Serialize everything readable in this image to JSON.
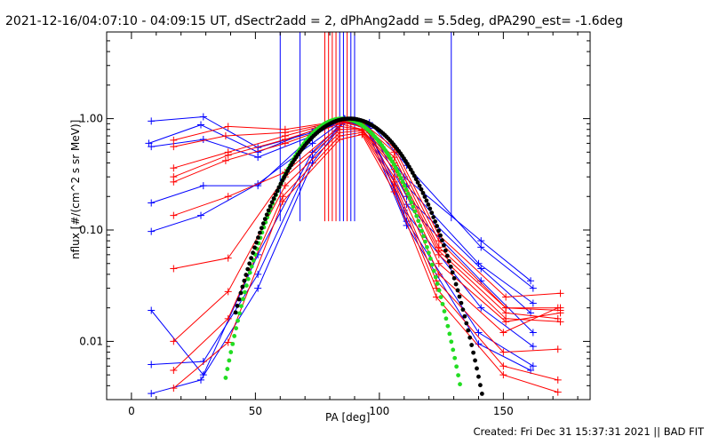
{
  "title": "2021-12-16/04:07:10 - 04:09:15 UT, dSectr2add = 2, dPhAng2add = 5.5deg, dPA290_est= -1.6deg",
  "footer": "Created: Fri Dec 31 15:37:31 2021 || BAD FIT",
  "colors": {
    "blue": "#0000ff",
    "red": "#ff0000",
    "green": "#22dd22",
    "black": "#000000"
  },
  "chart_data": {
    "type": "line",
    "xlabel": "PA [deg]",
    "ylabel": "nflux [#/(cm^2 s sr MeV)]",
    "xlim": [
      -10,
      185
    ],
    "ylim": [
      0.003,
      6.0
    ],
    "yscale": "log",
    "xticks": [
      0,
      50,
      100,
      150
    ],
    "yticks": [
      0.01,
      0.1,
      1.0
    ],
    "ytick_labels": [
      "0.01",
      "0.10",
      "1.00"
    ],
    "vertical_markers": [
      {
        "x": 60,
        "color": "blue"
      },
      {
        "x": 68,
        "color": "blue"
      },
      {
        "x": 78,
        "color": "red"
      },
      {
        "x": 79.5,
        "color": "red"
      },
      {
        "x": 81,
        "color": "red"
      },
      {
        "x": 82.5,
        "color": "red"
      },
      {
        "x": 84,
        "color": "blue"
      },
      {
        "x": 85.5,
        "color": "blue"
      },
      {
        "x": 87,
        "color": "red"
      },
      {
        "x": 88.5,
        "color": "blue"
      },
      {
        "x": 90,
        "color": "blue"
      },
      {
        "x": 129,
        "color": "blue"
      }
    ],
    "series": [
      {
        "color": "blue",
        "x": [
          8,
          29,
          51,
          73,
          86,
          95,
          110,
          141,
          161
        ],
        "y": [
          0.95,
          1.04,
          0.55,
          0.75,
          0.98,
          0.9,
          0.3,
          0.08,
          0.035
        ]
      },
      {
        "color": "blue",
        "x": [
          7,
          28,
          51,
          74,
          86,
          96,
          111,
          141,
          162
        ],
        "y": [
          0.6,
          0.88,
          0.5,
          0.8,
          1.0,
          0.92,
          0.38,
          0.07,
          0.03
        ]
      },
      {
        "color": "blue",
        "x": [
          8,
          29,
          51,
          73,
          86,
          95,
          111,
          140,
          162
        ],
        "y": [
          0.56,
          0.65,
          0.45,
          0.7,
          1.0,
          0.88,
          0.25,
          0.05,
          0.022
        ]
      },
      {
        "color": "blue",
        "x": [
          8,
          29,
          51,
          73,
          86,
          96,
          111,
          141,
          161
        ],
        "y": [
          0.175,
          0.25,
          0.25,
          0.7,
          0.99,
          0.85,
          0.2,
          0.045,
          0.018
        ]
      },
      {
        "color": "blue",
        "x": [
          8,
          28,
          51,
          73,
          86,
          95,
          111,
          141,
          162
        ],
        "y": [
          0.097,
          0.135,
          0.26,
          0.6,
          0.98,
          0.8,
          0.17,
          0.035,
          0.012
        ]
      },
      {
        "color": "blue",
        "x": [
          8,
          29,
          51,
          73,
          86,
          95,
          110,
          141,
          162
        ],
        "y": [
          0.019,
          0.005,
          0.06,
          0.5,
          0.97,
          0.85,
          0.15,
          0.02,
          0.009
        ]
      },
      {
        "color": "blue",
        "x": [
          8,
          29,
          51,
          73,
          86,
          96,
          111,
          140,
          162
        ],
        "y": [
          0.0062,
          0.0066,
          0.04,
          0.45,
          0.96,
          0.82,
          0.12,
          0.012,
          0.006
        ]
      },
      {
        "color": "blue",
        "x": [
          8,
          28,
          51,
          73,
          86,
          95,
          111,
          140,
          161
        ],
        "y": [
          0.0034,
          0.0045,
          0.03,
          0.4,
          0.95,
          0.8,
          0.11,
          0.0095,
          0.0055
        ]
      },
      {
        "color": "red",
        "x": [
          17,
          39,
          62,
          84,
          93,
          106,
          124,
          151,
          173
        ],
        "y": [
          0.64,
          0.85,
          0.8,
          0.95,
          0.92,
          0.55,
          0.09,
          0.025,
          0.027
        ]
      },
      {
        "color": "red",
        "x": [
          17,
          38,
          62,
          84,
          93,
          106,
          124,
          151,
          173
        ],
        "y": [
          0.56,
          0.7,
          0.75,
          0.95,
          0.9,
          0.5,
          0.08,
          0.02,
          0.02
        ]
      },
      {
        "color": "red",
        "x": [
          17,
          39,
          62,
          84,
          93,
          106,
          124,
          151,
          173
        ],
        "y": [
          0.36,
          0.5,
          0.7,
          0.95,
          0.85,
          0.45,
          0.07,
          0.02,
          0.019
        ]
      },
      {
        "color": "red",
        "x": [
          17,
          39,
          62,
          84,
          93,
          106,
          124,
          151,
          172
        ],
        "y": [
          0.3,
          0.47,
          0.65,
          0.93,
          0.85,
          0.4,
          0.065,
          0.018,
          0.016
        ]
      },
      {
        "color": "red",
        "x": [
          17,
          38,
          62,
          84,
          93,
          106,
          124,
          151,
          173
        ],
        "y": [
          0.27,
          0.42,
          0.6,
          0.9,
          0.8,
          0.38,
          0.06,
          0.016,
          0.015
        ]
      },
      {
        "color": "red",
        "x": [
          17,
          39,
          62,
          84,
          93,
          106,
          124,
          151,
          173
        ],
        "y": [
          0.135,
          0.2,
          0.33,
          0.85,
          0.8,
          0.35,
          0.05,
          0.015,
          0.018
        ]
      },
      {
        "color": "red",
        "x": [
          17,
          39,
          62,
          84,
          93,
          106,
          124,
          150,
          172
        ],
        "y": [
          0.045,
          0.056,
          0.3,
          0.8,
          0.8,
          0.3,
          0.04,
          0.012,
          0.02
        ]
      },
      {
        "color": "red",
        "x": [
          17,
          39,
          62,
          84,
          93,
          106,
          123,
          150,
          172
        ],
        "y": [
          0.01,
          0.028,
          0.25,
          0.75,
          0.78,
          0.27,
          0.035,
          0.008,
          0.0085
        ]
      },
      {
        "color": "red",
        "x": [
          17,
          39,
          61,
          84,
          93,
          106,
          123,
          150,
          172
        ],
        "y": [
          0.0055,
          0.016,
          0.2,
          0.7,
          0.75,
          0.25,
          0.03,
          0.006,
          0.0045
        ]
      },
      {
        "color": "red",
        "x": [
          17,
          39,
          61,
          84,
          93,
          106,
          123,
          150,
          172
        ],
        "y": [
          0.0038,
          0.0098,
          0.18,
          0.65,
          0.72,
          0.22,
          0.025,
          0.005,
          0.0035
        ]
      }
    ],
    "fits": [
      {
        "color": "green",
        "center": 85,
        "sin_power": 14,
        "xrange": [
          38,
          133
        ]
      },
      {
        "color": "black",
        "center": 88,
        "sin_power": 11,
        "xrange": [
          42,
          151
        ]
      }
    ]
  }
}
